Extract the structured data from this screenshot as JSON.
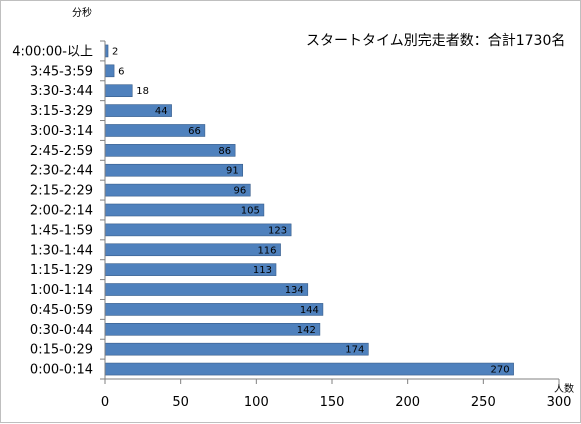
{
  "chart_data": {
    "type": "bar",
    "orientation": "horizontal",
    "annotation": "スタートタイム別完走者数：合計1730名",
    "ylabel": "分秒",
    "xlabel": "人数",
    "categories": [
      "4:00:00-以上",
      "3:45-3:59",
      "3:30-3:44",
      "3:15-3:29",
      "3:00-3:14",
      "2:45-2:59",
      "2:30-2:44",
      "2:15-2:29",
      "2:00-2:14",
      "1:45-1:59",
      "1:30-1:44",
      "1:15-1:29",
      "1:00-1:14",
      "0:45-0:59",
      "0:30-0:44",
      "0:15-0:29",
      "0:00-0:14"
    ],
    "values": [
      2,
      6,
      18,
      44,
      66,
      86,
      91,
      96,
      105,
      123,
      116,
      113,
      134,
      144,
      142,
      174,
      270
    ],
    "xlim": [
      0,
      300
    ],
    "xticks": [
      "0",
      "50",
      "100",
      "150",
      "200",
      "250",
      "300"
    ],
    "grid": false,
    "legend": "none",
    "bar_color": "#4f81bd",
    "bar_edge_color": "#385d8a",
    "axis_color": "#808080"
  }
}
